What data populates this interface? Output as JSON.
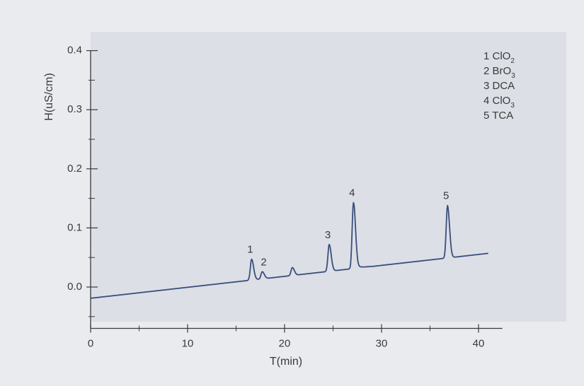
{
  "chart_data": {
    "type": "line",
    "xlabel": "T(min)",
    "ylabel": "H(uS/cm)",
    "xlim": [
      0,
      41
    ],
    "ylim": [
      -0.07,
      0.4
    ],
    "x_ticks": [
      0,
      10,
      20,
      30,
      40
    ],
    "x_tick_labels": [
      "0",
      "10",
      "20",
      "30",
      "40"
    ],
    "y_ticks": [
      0.0,
      0.1,
      0.2,
      0.3,
      0.4
    ],
    "y_tick_labels": [
      "0.0",
      "0.1",
      "0.2",
      "0.3",
      "0.4"
    ],
    "line_color": "#3a4f7a",
    "baseline": {
      "start": [
        0,
        -0.019
      ],
      "end": [
        41,
        0.057
      ]
    },
    "peaks": [
      {
        "label": "1",
        "x": 16.6,
        "y": 0.047
      },
      {
        "label": "2",
        "x": 17.7,
        "y": 0.026
      },
      {
        "label": "",
        "x": 20.8,
        "y": 0.033
      },
      {
        "label": "3",
        "x": 24.6,
        "y": 0.072
      },
      {
        "label": "4",
        "x": 27.1,
        "y": 0.143
      },
      {
        "label": "5",
        "x": 36.8,
        "y": 0.138
      }
    ],
    "legend": {
      "placement": "top-right",
      "entries": [
        {
          "num": "1",
          "name": "ClO",
          "sub": "2"
        },
        {
          "num": "2",
          "name": "BrO",
          "sub": "3"
        },
        {
          "num": "3",
          "name": "DCA",
          "sub": ""
        },
        {
          "num": "4",
          "name": "ClO",
          "sub": "3"
        },
        {
          "num": "5",
          "name": "TCA",
          "sub": ""
        }
      ]
    }
  },
  "colors": {
    "background": "#e9ebee",
    "plot_panel": "#dcdfe6",
    "axis": "#3a3a3a"
  }
}
